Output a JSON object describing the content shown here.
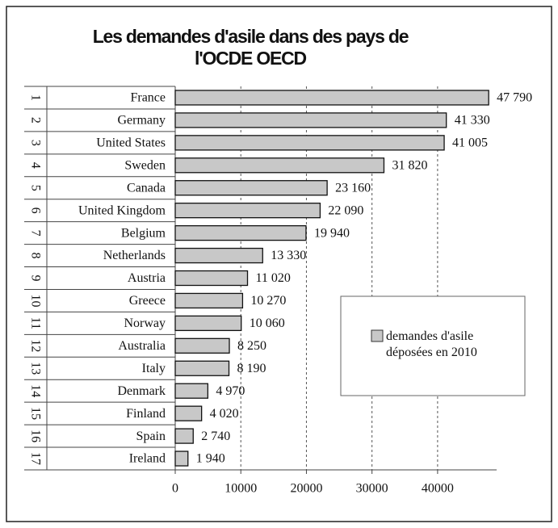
{
  "chart_data": {
    "type": "barh",
    "title": "Les demandes d'asile dans des pays de l'OCDE OECD",
    "ranks": [
      "1",
      "2",
      "3",
      "4",
      "5",
      "6",
      "7",
      "8",
      "9",
      "10",
      "11",
      "12",
      "13",
      "14",
      "15",
      "16",
      "17"
    ],
    "categories": [
      "France",
      "Germany",
      "United States",
      "Sweden",
      "Canada",
      "United Kingdom",
      "Belgium",
      "Netherlands",
      "Austria",
      "Greece",
      "Norway",
      "Australia",
      "Italy",
      "Denmark",
      "Finland",
      "Spain",
      "Ireland"
    ],
    "series": [
      {
        "name": "demandes d'asile déposées en 2010",
        "color": "#c8c8c8",
        "values": [
          47790,
          41330,
          41005,
          31820,
          23160,
          22090,
          19940,
          13330,
          11020,
          10270,
          10060,
          8250,
          8190,
          4970,
          4020,
          2740,
          1940
        ],
        "value_labels": [
          "47 790",
          "41 330",
          "41 005",
          "31 820",
          "23 160",
          "22 090",
          "19 940",
          "13 330",
          "11 020",
          "10 270",
          "10 060",
          "8 250",
          "8 190",
          "4 970",
          "4 020",
          "2 740",
          "1 940"
        ]
      }
    ],
    "xlim": [
      0,
      49000
    ],
    "xticks": [
      0,
      10000,
      20000,
      30000,
      40000
    ],
    "grid": true
  }
}
